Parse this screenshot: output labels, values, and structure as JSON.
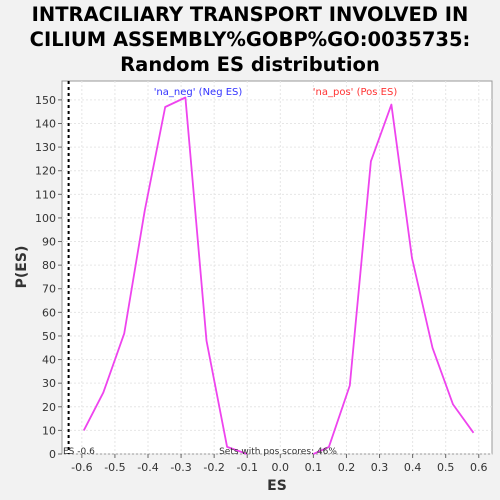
{
  "title_lines": [
    "INTRACILIARY TRANSPORT INVOLVED IN",
    "CILIUM ASSEMBLY%GOBP%GO:0035735:",
    "Random ES distribution"
  ],
  "chart_data": {
    "type": "line",
    "title": "INTRACILIARY TRANSPORT INVOLVED IN CILIUM ASSEMBLY%GOBP%GO:0035735: Random ES distribution",
    "xlabel": "ES",
    "ylabel": "P(ES)",
    "xlim": [
      -0.66,
      0.64
    ],
    "ylim": [
      0,
      158
    ],
    "xticks": [
      -0.6,
      -0.5,
      -0.4,
      -0.3,
      -0.2,
      -0.1,
      0.0,
      0.1,
      0.2,
      0.3,
      0.4,
      0.5,
      0.6
    ],
    "xtick_labels": [
      "-0.6",
      "-0.5",
      "-0.4",
      "-0.3",
      "-0.2",
      "-0.1",
      "0.0",
      "0.1",
      "0.2",
      "0.3",
      "0.4",
      "0.5",
      "0.6"
    ],
    "yticks": [
      0,
      10,
      20,
      30,
      40,
      50,
      60,
      70,
      80,
      90,
      100,
      110,
      120,
      130,
      140,
      150
    ],
    "grid": true,
    "line_color": "#ee44ee",
    "series": [
      {
        "name": "'na_neg' (Neg ES)",
        "color": "#ee44ee",
        "x": [
          -0.594,
          -0.535,
          -0.472,
          -0.41,
          -0.348,
          -0.287,
          -0.223,
          -0.161,
          -0.1
        ],
        "y": [
          10,
          26,
          51,
          103,
          147,
          151,
          48,
          3,
          0
        ]
      },
      {
        "name": "'na_pos' (Pos ES)",
        "color": "#ee44ee",
        "x": [
          0.1,
          0.147,
          0.21,
          0.274,
          0.336,
          0.398,
          0.46,
          0.522,
          0.584
        ],
        "y": [
          0,
          3,
          29,
          124,
          148,
          83,
          45,
          21,
          9
        ]
      }
    ],
    "legend": {
      "neg_label": "'na_neg' (Neg ES)",
      "pos_label": "'na_pos' (Pos ES)",
      "neg_color": "#3333ff",
      "pos_color": "#ff3333"
    },
    "marker_line": {
      "x": -0.64,
      "label": "ES -0.6"
    },
    "annotation": "Sets with pos scores: 46%"
  }
}
